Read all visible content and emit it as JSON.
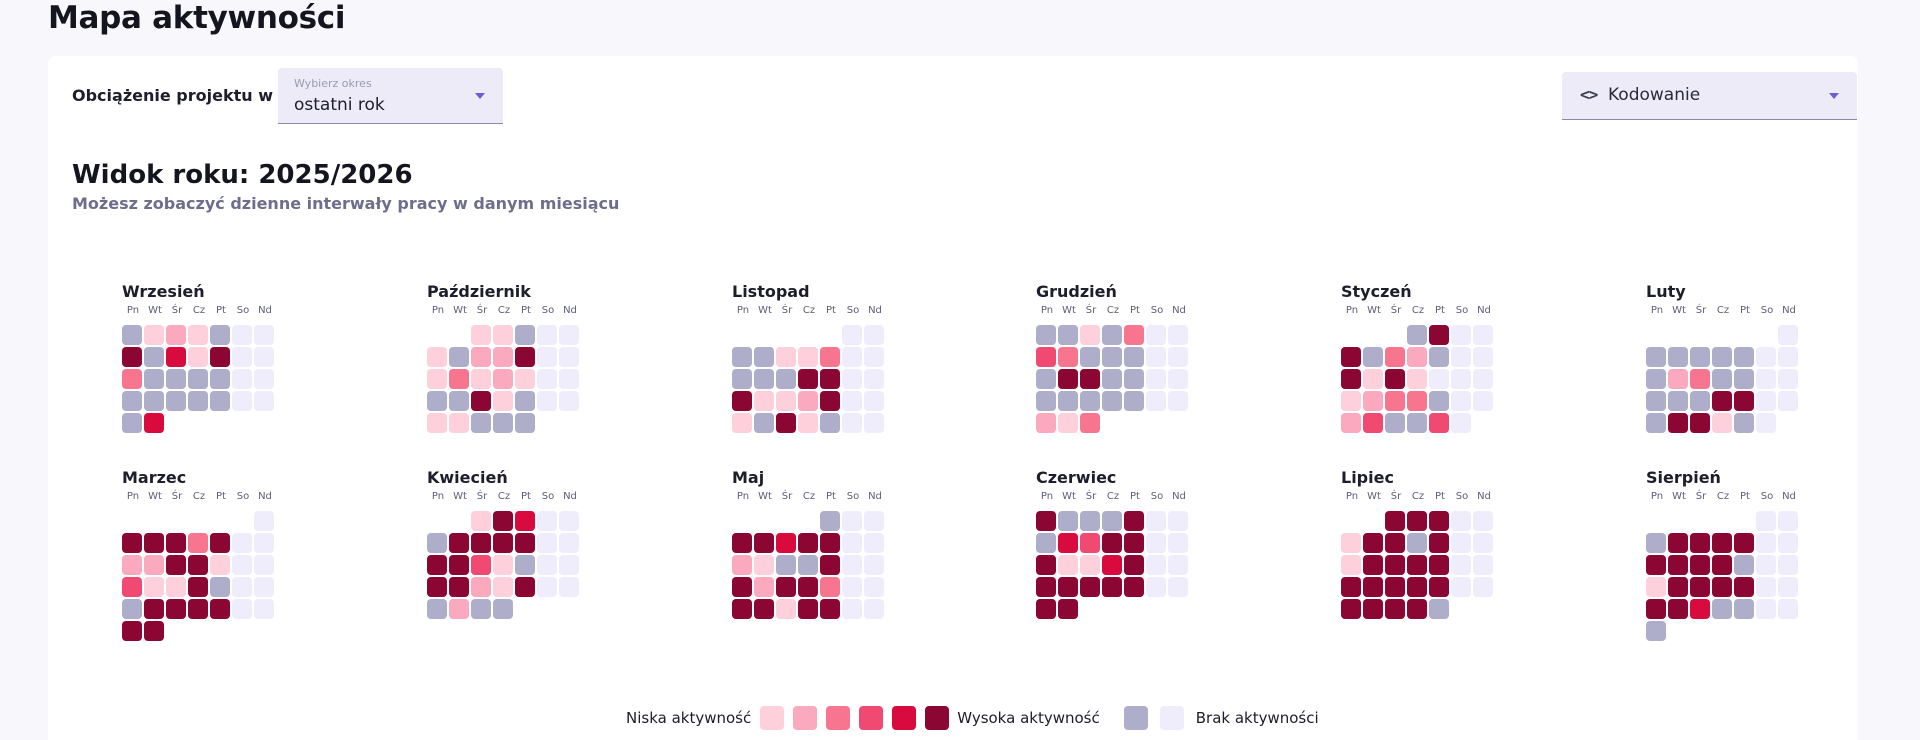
{
  "page": {
    "title": "Mapa aktywności"
  },
  "filters": {
    "label": "Obciążenie projektu w",
    "period": {
      "caption": "Wybierz okres",
      "value": "ostatni rok"
    },
    "category": {
      "icon": "code-icon",
      "icon_glyph": "<>",
      "value": "Kodowanie"
    }
  },
  "year": {
    "title": "Widok roku: 2025/2026",
    "subtitle": "Możesz zobaczyć dzienne interwały pracy w danym miesiącu"
  },
  "weekdays": [
    "Pn",
    "Wt",
    "Śr",
    "Cz",
    "Pt",
    "So",
    "Nd"
  ],
  "level_colors": {
    "none": "#aeaecb",
    "l1": "#fdd0dc",
    "l2": "#fba9bf",
    "l3": "#f7758f",
    "l4": "#f04a72",
    "l5": "#d90b3e",
    "l6": "#8c0633",
    "weekend": "#efedfb"
  },
  "months": [
    {
      "name": "Wrzesień",
      "offset": 0,
      "levels": [
        0,
        1,
        2,
        1,
        0,
        "w",
        "w",
        6,
        0,
        5,
        1,
        6,
        "w",
        "w",
        3,
        0,
        0,
        0,
        0,
        "w",
        "w",
        0,
        0,
        0,
        0,
        0,
        "w",
        "w",
        0,
        5
      ]
    },
    {
      "name": "Październik",
      "offset": 2,
      "levels": [
        1,
        1,
        0,
        "w",
        "w",
        1,
        0,
        2,
        2,
        6,
        "w",
        "w",
        1,
        3,
        1,
        2,
        1,
        "w",
        "w",
        0,
        0,
        6,
        1,
        0,
        "w",
        "w",
        1,
        1,
        0,
        0,
        0
      ]
    },
    {
      "name": "Listopad",
      "offset": 5,
      "levels": [
        "w",
        "w",
        0,
        0,
        1,
        1,
        3,
        "w",
        "w",
        0,
        0,
        0,
        6,
        6,
        "w",
        "w",
        6,
        1,
        1,
        2,
        6,
        "w",
        "w",
        1,
        0,
        6,
        1,
        0,
        "w",
        "w"
      ]
    },
    {
      "name": "Grudzień",
      "offset": 0,
      "levels": [
        0,
        0,
        1,
        0,
        3,
        "w",
        "w",
        4,
        3,
        0,
        0,
        0,
        "w",
        "w",
        0,
        6,
        6,
        0,
        0,
        "w",
        "w",
        0,
        0,
        0,
        0,
        0,
        "w",
        "w",
        2,
        1,
        3
      ]
    },
    {
      "name": "Styczeń",
      "offset": 3,
      "levels": [
        0,
        6,
        "w",
        "w",
        6,
        0,
        3,
        2,
        0,
        "w",
        "w",
        6,
        1,
        6,
        1,
        "w",
        "w",
        "w",
        1,
        2,
        3,
        3,
        0,
        "w",
        "w",
        2,
        4,
        0,
        0,
        4,
        "w"
      ]
    },
    {
      "name": "Luty",
      "offset": 6,
      "levels": [
        "w",
        0,
        0,
        0,
        0,
        0,
        "w",
        "w",
        0,
        2,
        3,
        0,
        0,
        "w",
        "w",
        0,
        0,
        0,
        6,
        6,
        "w",
        "w",
        0,
        6,
        6,
        1,
        0,
        "w"
      ]
    },
    {
      "name": "Marzec",
      "offset": 6,
      "levels": [
        "w",
        6,
        6,
        6,
        3,
        6,
        "w",
        "w",
        2,
        2,
        6,
        6,
        1,
        "w",
        "w",
        4,
        1,
        1,
        6,
        0,
        "w",
        "w",
        0,
        6,
        6,
        6,
        6,
        "w",
        "w",
        6,
        6
      ]
    },
    {
      "name": "Kwiecień",
      "offset": 2,
      "levels": [
        1,
        6,
        5,
        "w",
        "w",
        0,
        6,
        6,
        6,
        6,
        "w",
        "w",
        6,
        6,
        4,
        1,
        0,
        "w",
        "w",
        6,
        6,
        2,
        1,
        6,
        "w",
        "w",
        0,
        2,
        0,
        0
      ]
    },
    {
      "name": "Maj",
      "offset": 4,
      "levels": [
        0,
        "w",
        "w",
        6,
        6,
        5,
        6,
        6,
        "w",
        "w",
        2,
        1,
        0,
        0,
        6,
        "w",
        "w",
        6,
        2,
        6,
        6,
        3,
        "w",
        "w",
        6,
        6,
        1,
        6,
        6,
        "w",
        "w"
      ]
    },
    {
      "name": "Czerwiec",
      "offset": 0,
      "levels": [
        6,
        0,
        0,
        0,
        6,
        "w",
        "w",
        0,
        5,
        4,
        6,
        6,
        "w",
        "w",
        6,
        1,
        1,
        5,
        6,
        "w",
        "w",
        6,
        6,
        6,
        6,
        6,
        "w",
        "w",
        6,
        6
      ]
    },
    {
      "name": "Lipiec",
      "offset": 2,
      "levels": [
        6,
        6,
        6,
        "w",
        "w",
        1,
        6,
        6,
        0,
        6,
        "w",
        "w",
        1,
        6,
        6,
        6,
        6,
        "w",
        "w",
        6,
        6,
        6,
        6,
        6,
        "w",
        "w",
        6,
        6,
        6,
        6,
        0
      ]
    },
    {
      "name": "Sierpień",
      "offset": 5,
      "levels": [
        "w",
        "w",
        0,
        6,
        6,
        6,
        6,
        "w",
        "w",
        6,
        6,
        6,
        6,
        0,
        "w",
        "w",
        1,
        6,
        6,
        6,
        6,
        "w",
        "w",
        6,
        6,
        5,
        0,
        0,
        "w",
        "w",
        0
      ]
    }
  ],
  "legend": {
    "low_label": "Niska aktywność",
    "high_label": "Wysoka aktywność",
    "none_label": "Brak aktywności"
  }
}
